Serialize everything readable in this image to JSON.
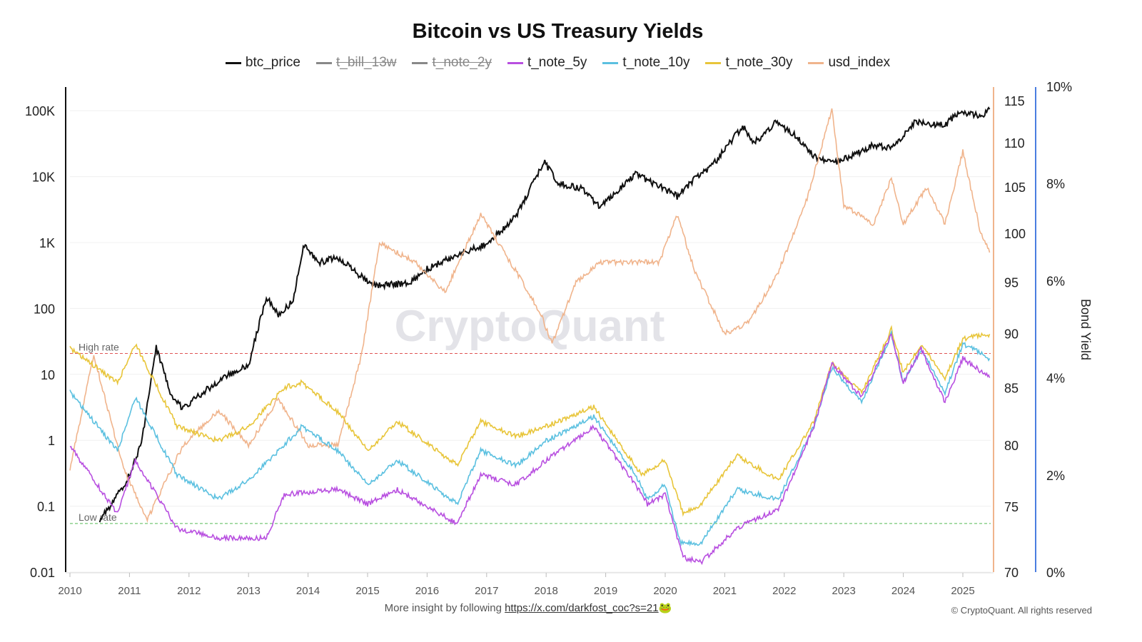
{
  "title": "Bitcoin vs US Treasury Yields",
  "legend": [
    {
      "name": "btc_price",
      "color": "#111111",
      "hidden": false
    },
    {
      "name": "t_bill_13w",
      "color": "#888888",
      "hidden": true
    },
    {
      "name": "t_note_2y",
      "color": "#888888",
      "hidden": true
    },
    {
      "name": "t_note_5y",
      "color": "#b84fe0",
      "hidden": false
    },
    {
      "name": "t_note_10y",
      "color": "#5bc0e0",
      "hidden": false
    },
    {
      "name": "t_note_30y",
      "color": "#e8c53a",
      "hidden": false
    },
    {
      "name": "usd_index",
      "color": "#f0b48c",
      "hidden": false
    }
  ],
  "footer": {
    "text": "More insight by following ",
    "link": "https://x.com/darkfost_coc?s=21",
    "emoji": "🐸",
    "copyright": "© CryptoQuant. All rights reserved"
  },
  "watermark": "CryptoQuant",
  "chart_data": {
    "type": "line",
    "title": "Bitcoin vs US Treasury Yields",
    "x_ticks": [
      "2010",
      "2011",
      "2012",
      "2013",
      "2014",
      "2015",
      "2016",
      "2017",
      "2018",
      "2019",
      "2020",
      "2021",
      "2022",
      "2023",
      "2024",
      "2025"
    ],
    "left_axis": {
      "scale": "log",
      "ticks": [
        "0.01",
        "0.1",
        "1",
        "10",
        "100",
        "1K",
        "10K",
        "100K"
      ],
      "range": [
        0.01,
        100000
      ]
    },
    "right_axis_usd": {
      "scale": "log",
      "ticks": [
        "70",
        "75",
        "80",
        "85",
        "90",
        "95",
        "100",
        "105",
        "110",
        "115"
      ],
      "range": [
        70,
        115
      ]
    },
    "right_axis_yield": {
      "label": "Bond Yield",
      "ticks": [
        "0%",
        "2%",
        "4%",
        "6%",
        "8%",
        "10%"
      ],
      "range": [
        0,
        10
      ]
    },
    "reference_lines": [
      {
        "label": "High rate",
        "value": 4.5,
        "color": "#e05555"
      },
      {
        "label": "Low rate",
        "value": 1.0,
        "color": "#55bb55"
      }
    ],
    "grid": true,
    "legend_position": "top",
    "series": [
      {
        "name": "btc_price",
        "axis": "left",
        "points": [
          [
            2010.5,
            0.06
          ],
          [
            2010.9,
            0.2
          ],
          [
            2011.0,
            0.3
          ],
          [
            2011.2,
            0.9
          ],
          [
            2011.45,
            25
          ],
          [
            2011.7,
            5
          ],
          [
            2011.9,
            3
          ],
          [
            2012.2,
            5
          ],
          [
            2012.5,
            8
          ],
          [
            2013.0,
            14
          ],
          [
            2013.3,
            150
          ],
          [
            2013.5,
            80
          ],
          [
            2013.75,
            130
          ],
          [
            2013.92,
            900
          ],
          [
            2014.2,
            500
          ],
          [
            2014.5,
            600
          ],
          [
            2014.9,
            300
          ],
          [
            2015.1,
            220
          ],
          [
            2015.7,
            240
          ],
          [
            2016.0,
            400
          ],
          [
            2016.5,
            650
          ],
          [
            2017.0,
            950
          ],
          [
            2017.5,
            2500
          ],
          [
            2017.96,
            17000
          ],
          [
            2018.2,
            8000
          ],
          [
            2018.6,
            6500
          ],
          [
            2018.9,
            3500
          ],
          [
            2019.5,
            11000
          ],
          [
            2019.9,
            7200
          ],
          [
            2020.2,
            5000
          ],
          [
            2020.5,
            9500
          ],
          [
            2020.8,
            15000
          ],
          [
            2021.3,
            58000
          ],
          [
            2021.5,
            33000
          ],
          [
            2021.85,
            65000
          ],
          [
            2022.2,
            42000
          ],
          [
            2022.5,
            20000
          ],
          [
            2022.9,
            16500
          ],
          [
            2023.5,
            30000
          ],
          [
            2023.8,
            27000
          ],
          [
            2024.2,
            68000
          ],
          [
            2024.7,
            60000
          ],
          [
            2024.95,
            100000
          ],
          [
            2025.3,
            82000
          ],
          [
            2025.45,
            105000
          ]
        ]
      },
      {
        "name": "usd_index",
        "axis": "usd",
        "points": [
          [
            2010.0,
            78
          ],
          [
            2010.4,
            88
          ],
          [
            2010.9,
            78
          ],
          [
            2011.3,
            74
          ],
          [
            2011.9,
            80
          ],
          [
            2012.5,
            83
          ],
          [
            2013.0,
            80
          ],
          [
            2013.5,
            84
          ],
          [
            2014.0,
            80
          ],
          [
            2014.5,
            80
          ],
          [
            2014.9,
            88
          ],
          [
            2015.2,
            99
          ],
          [
            2015.8,
            97
          ],
          [
            2016.3,
            94
          ],
          [
            2016.9,
            102
          ],
          [
            2017.5,
            96
          ],
          [
            2017.9,
            92
          ],
          [
            2018.1,
            89
          ],
          [
            2018.5,
            95
          ],
          [
            2018.9,
            97
          ],
          [
            2019.5,
            97
          ],
          [
            2019.9,
            97
          ],
          [
            2020.2,
            102
          ],
          [
            2020.5,
            96
          ],
          [
            2021.0,
            90
          ],
          [
            2021.4,
            91
          ],
          [
            2021.9,
            96
          ],
          [
            2022.4,
            104
          ],
          [
            2022.8,
            114
          ],
          [
            2023.0,
            103
          ],
          [
            2023.5,
            101
          ],
          [
            2023.8,
            106
          ],
          [
            2024.0,
            101
          ],
          [
            2024.4,
            105
          ],
          [
            2024.7,
            101
          ],
          [
            2025.0,
            109
          ],
          [
            2025.3,
            100
          ],
          [
            2025.45,
            98
          ]
        ]
      },
      {
        "name": "t_note_30y",
        "axis": "yield",
        "points": [
          [
            2010.0,
            4.6
          ],
          [
            2010.8,
            3.9
          ],
          [
            2011.1,
            4.7
          ],
          [
            2011.8,
            3.0
          ],
          [
            2012.5,
            2.7
          ],
          [
            2013.0,
            3.0
          ],
          [
            2013.6,
            3.8
          ],
          [
            2013.9,
            3.9
          ],
          [
            2014.5,
            3.3
          ],
          [
            2015.0,
            2.5
          ],
          [
            2015.5,
            3.1
          ],
          [
            2016.5,
            2.2
          ],
          [
            2016.9,
            3.1
          ],
          [
            2017.5,
            2.8
          ],
          [
            2018.0,
            3.0
          ],
          [
            2018.8,
            3.4
          ],
          [
            2019.6,
            2.0
          ],
          [
            2020.0,
            2.3
          ],
          [
            2020.3,
            1.2
          ],
          [
            2020.6,
            1.4
          ],
          [
            2021.2,
            2.4
          ],
          [
            2021.9,
            1.9
          ],
          [
            2022.5,
            3.1
          ],
          [
            2022.8,
            4.3
          ],
          [
            2023.3,
            3.7
          ],
          [
            2023.8,
            5.0
          ],
          [
            2024.0,
            4.1
          ],
          [
            2024.3,
            4.7
          ],
          [
            2024.7,
            4.0
          ],
          [
            2025.0,
            4.8
          ],
          [
            2025.45,
            4.9
          ]
        ]
      },
      {
        "name": "t_note_10y",
        "axis": "yield",
        "points": [
          [
            2010.0,
            3.7
          ],
          [
            2010.8,
            2.5
          ],
          [
            2011.1,
            3.6
          ],
          [
            2011.8,
            2.0
          ],
          [
            2012.5,
            1.5
          ],
          [
            2013.0,
            1.9
          ],
          [
            2013.5,
            2.5
          ],
          [
            2013.9,
            3.0
          ],
          [
            2014.5,
            2.5
          ],
          [
            2015.0,
            1.8
          ],
          [
            2015.5,
            2.3
          ],
          [
            2016.5,
            1.4
          ],
          [
            2016.9,
            2.5
          ],
          [
            2017.5,
            2.2
          ],
          [
            2018.0,
            2.7
          ],
          [
            2018.8,
            3.2
          ],
          [
            2019.5,
            2.0
          ],
          [
            2019.7,
            1.5
          ],
          [
            2020.0,
            1.8
          ],
          [
            2020.25,
            0.6
          ],
          [
            2020.6,
            0.6
          ],
          [
            2021.2,
            1.7
          ],
          [
            2021.9,
            1.5
          ],
          [
            2022.5,
            3.0
          ],
          [
            2022.8,
            4.2
          ],
          [
            2023.3,
            3.5
          ],
          [
            2023.8,
            4.9
          ],
          [
            2024.0,
            3.9
          ],
          [
            2024.3,
            4.6
          ],
          [
            2024.7,
            3.7
          ],
          [
            2025.0,
            4.7
          ],
          [
            2025.45,
            4.4
          ]
        ]
      },
      {
        "name": "t_note_5y",
        "axis": "yield",
        "points": [
          [
            2010.0,
            2.6
          ],
          [
            2010.8,
            1.2
          ],
          [
            2011.1,
            2.3
          ],
          [
            2011.8,
            0.9
          ],
          [
            2012.5,
            0.7
          ],
          [
            2013.3,
            0.7
          ],
          [
            2013.6,
            1.6
          ],
          [
            2014.5,
            1.7
          ],
          [
            2015.0,
            1.4
          ],
          [
            2015.5,
            1.7
          ],
          [
            2016.5,
            1.0
          ],
          [
            2016.9,
            2.0
          ],
          [
            2017.5,
            1.8
          ],
          [
            2018.0,
            2.3
          ],
          [
            2018.8,
            3.0
          ],
          [
            2019.5,
            1.8
          ],
          [
            2019.7,
            1.4
          ],
          [
            2020.0,
            1.6
          ],
          [
            2020.3,
            0.3
          ],
          [
            2020.6,
            0.2
          ],
          [
            2021.2,
            0.9
          ],
          [
            2021.9,
            1.3
          ],
          [
            2022.5,
            3.0
          ],
          [
            2022.8,
            4.3
          ],
          [
            2023.3,
            3.6
          ],
          [
            2023.8,
            4.9
          ],
          [
            2024.0,
            3.9
          ],
          [
            2024.3,
            4.6
          ],
          [
            2024.7,
            3.5
          ],
          [
            2025.0,
            4.4
          ],
          [
            2025.45,
            4.0
          ]
        ]
      }
    ]
  }
}
